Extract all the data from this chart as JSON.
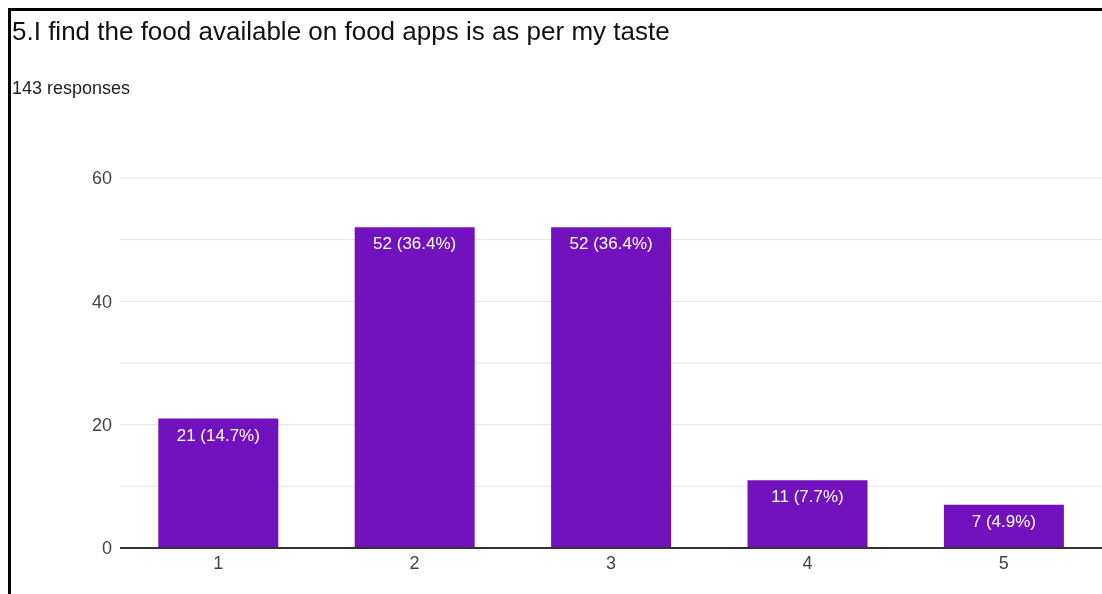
{
  "chart_data": {
    "type": "bar",
    "title": "5.I find the food available on food apps is as per my taste",
    "subtitle": "143 responses",
    "categories": [
      "1",
      "2",
      "3",
      "4",
      "5"
    ],
    "values": [
      21,
      52,
      52,
      11,
      7
    ],
    "value_labels": [
      "21 (14.7%)",
      "52 (36.4%)",
      "52 (36.4%)",
      "11 (7.7%)",
      "7 (4.9%)"
    ],
    "color": "#7212be",
    "ylim": [
      0,
      60
    ],
    "yticks": [
      0,
      {
        "value": 10,
        "label": null
      },
      20,
      {
        "value": 30,
        "label": null
      },
      40,
      {
        "value": 50,
        "label": null
      },
      60
    ],
    "grid": "y"
  }
}
